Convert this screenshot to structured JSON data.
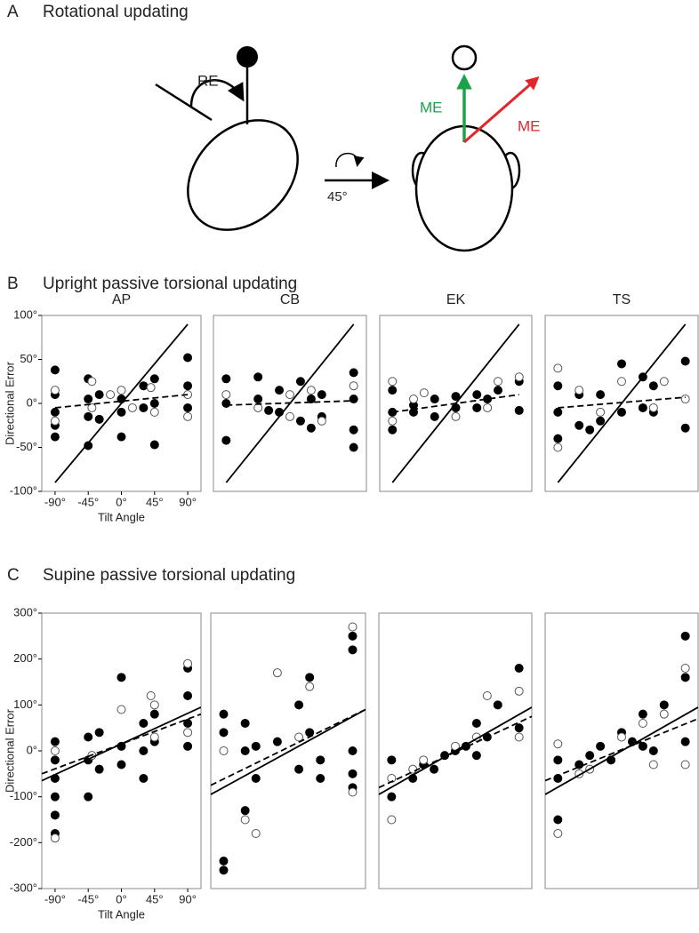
{
  "panel_a": {
    "label": "A",
    "title": "Rotational updating",
    "re": "RE",
    "me_green": "ME",
    "me_red": "ME",
    "rotation": "45°"
  },
  "panel_b": {
    "label": "B",
    "title": "Upright passive torsional updating"
  },
  "panel_c": {
    "label": "C",
    "title": "Supine passive torsional updating"
  },
  "chart_data": [
    {
      "type": "scatter",
      "title": "AP",
      "xlabel": "Tilt Angle",
      "ylabel": "Directional Error",
      "xlim": [
        -108,
        108
      ],
      "ylim": [
        -100,
        100
      ],
      "xticks": [
        {
          "value": -90,
          "label": "-90°"
        },
        {
          "value": -45,
          "label": "-45°"
        },
        {
          "value": 0,
          "label": "0°"
        },
        {
          "value": 45,
          "label": "45°"
        },
        {
          "value": 90,
          "label": "90°"
        }
      ],
      "yticks": [
        {
          "value": 100,
          "label": "100°"
        },
        {
          "value": 50,
          "label": "50°"
        },
        {
          "value": 0,
          "label": "0°"
        },
        {
          "value": -50,
          "label": "-50°"
        },
        {
          "value": -100,
          "label": "-100°"
        }
      ],
      "series": [
        {
          "marker": "filled",
          "color": "#000000",
          "x": [
            -90,
            -90,
            -90,
            -90,
            -90,
            -45,
            -45,
            -45,
            -45,
            -30,
            -30,
            0,
            0,
            0,
            30,
            30,
            45,
            45,
            45,
            90,
            90,
            90
          ],
          "values": [
            38,
            10,
            -10,
            -25,
            -38,
            28,
            5,
            -15,
            -48,
            10,
            -18,
            5,
            -10,
            -38,
            20,
            -5,
            28,
            0,
            -47,
            52,
            20,
            -5
          ]
        },
        {
          "marker": "open",
          "color": "#555555",
          "x": [
            -90,
            -90,
            -40,
            -40,
            -15,
            0,
            15,
            40,
            45,
            90,
            90
          ],
          "values": [
            15,
            -20,
            25,
            -5,
            10,
            15,
            -5,
            18,
            -10,
            10,
            -15
          ]
        }
      ],
      "lines": [
        {
          "style": "solid",
          "x": [
            -90,
            90
          ],
          "values": [
            -90,
            90
          ]
        },
        {
          "style": "dashed",
          "x": [
            -90,
            90
          ],
          "values": [
            -5,
            10
          ]
        }
      ]
    },
    {
      "type": "scatter",
      "title": "CB",
      "xlim": [
        -108,
        108
      ],
      "ylim": [
        -100,
        100
      ],
      "series": [
        {
          "marker": "filled",
          "color": "#000000",
          "x": [
            -90,
            -90,
            -90,
            -45,
            -45,
            -30,
            -15,
            -15,
            15,
            15,
            30,
            30,
            45,
            45,
            90,
            90,
            90,
            90
          ],
          "values": [
            28,
            0,
            -42,
            30,
            5,
            -8,
            15,
            -10,
            25,
            -20,
            5,
            -28,
            10,
            -15,
            35,
            5,
            -30,
            -50
          ]
        },
        {
          "marker": "open",
          "color": "#555555",
          "x": [
            -90,
            -45,
            0,
            0,
            30,
            45,
            90
          ],
          "values": [
            10,
            -5,
            10,
            -15,
            15,
            -20,
            20
          ]
        }
      ],
      "lines": [
        {
          "style": "solid",
          "x": [
            -90,
            90
          ],
          "values": [
            -90,
            90
          ]
        },
        {
          "style": "dashed",
          "x": [
            -90,
            90
          ],
          "values": [
            -2,
            3
          ]
        }
      ]
    },
    {
      "type": "scatter",
      "title": "EK",
      "xlim": [
        -108,
        108
      ],
      "ylim": [
        -100,
        100
      ],
      "series": [
        {
          "marker": "filled",
          "color": "#000000",
          "x": [
            -90,
            -90,
            -90,
            -60,
            -60,
            -30,
            -30,
            0,
            0,
            30,
            30,
            45,
            60,
            90,
            90
          ],
          "values": [
            15,
            -10,
            -30,
            -2,
            -10,
            5,
            -15,
            8,
            -5,
            10,
            -5,
            5,
            15,
            25,
            -8
          ]
        },
        {
          "marker": "open",
          "color": "#555555",
          "x": [
            -90,
            -90,
            -60,
            -45,
            0,
            45,
            60,
            90
          ],
          "values": [
            25,
            -20,
            5,
            12,
            -15,
            -5,
            25,
            30
          ]
        }
      ],
      "lines": [
        {
          "style": "solid",
          "x": [
            -90,
            90
          ],
          "values": [
            -90,
            90
          ]
        },
        {
          "style": "dashed",
          "x": [
            -90,
            90
          ],
          "values": [
            -10,
            10
          ]
        }
      ]
    },
    {
      "type": "scatter",
      "title": "TS",
      "xlim": [
        -108,
        108
      ],
      "ylim": [
        -100,
        100
      ],
      "series": [
        {
          "marker": "filled",
          "color": "#000000",
          "x": [
            -90,
            -90,
            -90,
            -60,
            -60,
            -45,
            -30,
            -30,
            0,
            0,
            30,
            30,
            45,
            45,
            90,
            90
          ],
          "values": [
            20,
            -10,
            -40,
            10,
            -25,
            -30,
            10,
            -20,
            45,
            -10,
            30,
            -5,
            20,
            -10,
            48,
            -28
          ]
        },
        {
          "marker": "open",
          "color": "#555555",
          "x": [
            -90,
            -90,
            -60,
            -30,
            0,
            45,
            60,
            90
          ],
          "values": [
            40,
            -50,
            15,
            -10,
            25,
            -5,
            25,
            5
          ]
        }
      ],
      "lines": [
        {
          "style": "solid",
          "x": [
            -90,
            90
          ],
          "values": [
            -90,
            90
          ]
        },
        {
          "style": "dashed",
          "x": [
            -90,
            90
          ],
          "values": [
            -5,
            7
          ]
        }
      ]
    },
    {
      "type": "scatter",
      "xlabel": "Tilt Angle",
      "ylabel": "Directional Error",
      "xlim": [
        -108,
        108
      ],
      "ylim": [
        -300,
        300
      ],
      "xticks": [
        {
          "value": -90,
          "label": "-90°"
        },
        {
          "value": -45,
          "label": "-45°"
        },
        {
          "value": 0,
          "label": "0°"
        },
        {
          "value": 45,
          "label": "45°"
        },
        {
          "value": 90,
          "label": "90°"
        }
      ],
      "yticks": [
        {
          "value": 300,
          "label": "300°"
        },
        {
          "value": 200,
          "label": "200°"
        },
        {
          "value": 100,
          "label": "100°"
        },
        {
          "value": 0,
          "label": "0°"
        },
        {
          "value": -100,
          "label": "-100°"
        },
        {
          "value": -200,
          "label": "-200°"
        },
        {
          "value": -300,
          "label": "-300°"
        }
      ],
      "series": [
        {
          "marker": "filled",
          "color": "#000000",
          "x": [
            -90,
            -90,
            -90,
            -90,
            -90,
            -90,
            -45,
            -45,
            -45,
            -30,
            -30,
            0,
            0,
            0,
            30,
            30,
            30,
            45,
            45,
            90,
            90,
            90,
            90
          ],
          "values": [
            20,
            -20,
            -60,
            -140,
            -180,
            -100,
            30,
            -20,
            -100,
            40,
            -40,
            160,
            10,
            -30,
            60,
            0,
            -60,
            80,
            20,
            180,
            120,
            60,
            10
          ]
        },
        {
          "marker": "open",
          "color": "#555555",
          "x": [
            -90,
            -90,
            -40,
            0,
            40,
            45,
            45,
            90,
            90
          ],
          "values": [
            0,
            -190,
            -10,
            90,
            120,
            100,
            30,
            190,
            40
          ]
        }
      ],
      "lines": [
        {
          "style": "solid",
          "x": [
            -108,
            108
          ],
          "values": [
            -65,
            95
          ]
        },
        {
          "style": "dashed",
          "x": [
            -108,
            108
          ],
          "values": [
            -50,
            80
          ]
        }
      ]
    },
    {
      "type": "scatter",
      "xlim": [
        -108,
        108
      ],
      "ylim": [
        -300,
        300
      ],
      "series": [
        {
          "marker": "filled",
          "color": "#000000",
          "x": [
            -90,
            -90,
            -90,
            -90,
            -60,
            -60,
            -60,
            -45,
            -45,
            -15,
            15,
            15,
            30,
            30,
            45,
            45,
            90,
            90,
            90,
            90,
            90
          ],
          "values": [
            80,
            40,
            -240,
            -260,
            60,
            0,
            -130,
            -60,
            10,
            20,
            100,
            -40,
            160,
            40,
            -20,
            -60,
            250,
            220,
            0,
            -50,
            -80
          ]
        },
        {
          "marker": "open",
          "color": "#555555",
          "x": [
            -90,
            -60,
            -45,
            -15,
            15,
            30,
            90,
            90
          ],
          "values": [
            0,
            -150,
            -180,
            170,
            30,
            140,
            270,
            -90
          ]
        }
      ],
      "lines": [
        {
          "style": "solid",
          "x": [
            -108,
            108
          ],
          "values": [
            -95,
            90
          ]
        },
        {
          "style": "dashed",
          "x": [
            -108,
            108
          ],
          "values": [
            -75,
            90
          ]
        }
      ]
    },
    {
      "type": "scatter",
      "xlim": [
        -108,
        108
      ],
      "ylim": [
        -300,
        300
      ],
      "series": [
        {
          "marker": "filled",
          "color": "#000000",
          "x": [
            -90,
            -90,
            -60,
            -45,
            -30,
            -15,
            0,
            15,
            30,
            30,
            45,
            60,
            90,
            90
          ],
          "values": [
            -20,
            -100,
            -60,
            -30,
            -40,
            -10,
            0,
            10,
            60,
            -10,
            30,
            100,
            180,
            50
          ]
        },
        {
          "marker": "open",
          "color": "#555555",
          "x": [
            -90,
            -90,
            -60,
            -45,
            0,
            30,
            45,
            90,
            90
          ],
          "values": [
            -150,
            -60,
            -40,
            -20,
            10,
            30,
            120,
            130,
            30
          ]
        }
      ],
      "lines": [
        {
          "style": "solid",
          "x": [
            -108,
            108
          ],
          "values": [
            -95,
            95
          ]
        },
        {
          "style": "dashed",
          "x": [
            -108,
            108
          ],
          "values": [
            -80,
            75
          ]
        }
      ]
    },
    {
      "type": "scatter",
      "xlim": [
        -108,
        108
      ],
      "ylim": [
        -300,
        300
      ],
      "series": [
        {
          "marker": "filled",
          "color": "#000000",
          "x": [
            -90,
            -90,
            -90,
            -60,
            -45,
            -30,
            -15,
            0,
            15,
            30,
            30,
            45,
            60,
            90,
            90,
            90
          ],
          "values": [
            -20,
            -60,
            -150,
            -30,
            -10,
            10,
            -20,
            40,
            20,
            80,
            10,
            0,
            100,
            250,
            160,
            20
          ]
        },
        {
          "marker": "open",
          "color": "#555555",
          "x": [
            -90,
            -90,
            -60,
            -45,
            0,
            30,
            45,
            60,
            90,
            90
          ],
          "values": [
            -180,
            15,
            -50,
            -40,
            30,
            60,
            -30,
            80,
            180,
            -30
          ]
        }
      ],
      "lines": [
        {
          "style": "solid",
          "x": [
            -108,
            108
          ],
          "values": [
            -95,
            95
          ]
        },
        {
          "style": "dashed",
          "x": [
            -108,
            108
          ],
          "values": [
            -65,
            70
          ]
        }
      ]
    }
  ]
}
